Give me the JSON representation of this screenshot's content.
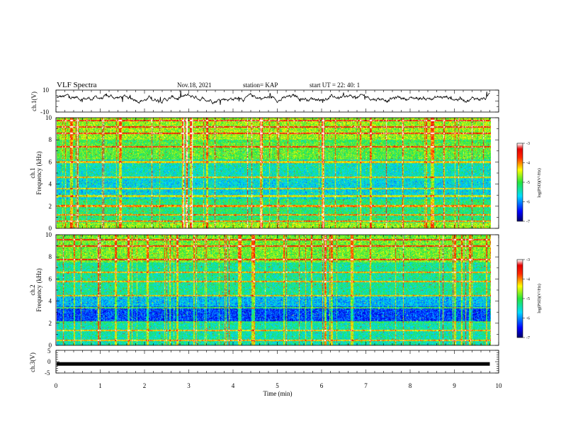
{
  "header": {
    "title": "VLF Spectra",
    "date": "Nov.18, 2021",
    "station": "station= KAP",
    "start": "start  UT =   22: 40: 1"
  },
  "chart_data": [
    {
      "type": "line",
      "name": "ch1-waveform",
      "ylabel": "ch.1(V)",
      "xlim": [
        0,
        10
      ],
      "ylim": [
        -10,
        10
      ],
      "yticks": [
        "10",
        "-10"
      ],
      "x_data_end": 9.8,
      "baseline_v": 3,
      "amplitude_v": 4
    },
    {
      "type": "heatmap",
      "name": "ch1-spectrogram",
      "ylabel_line1": "ch.1",
      "ylabel_line2": "Frequency  (kHz)",
      "xlim": [
        0,
        10
      ],
      "ylim": [
        0,
        10
      ],
      "yticks": [
        "0",
        "2",
        "4",
        "6",
        "8",
        "10"
      ],
      "x_data_end": 9.8,
      "color_scale": {
        "label": "log(PSD)(V²/Hz)",
        "min": -7,
        "max": -3,
        "ticks": [
          "-3",
          "-4",
          "-5",
          "-6",
          "-7"
        ]
      }
    },
    {
      "type": "heatmap",
      "name": "ch2-spectrogram",
      "ylabel_line1": "ch.2",
      "ylabel_line2": "Frequency  (kHz)",
      "xlim": [
        0,
        10
      ],
      "ylim": [
        0,
        10
      ],
      "yticks": [
        "0",
        "2",
        "4",
        "6",
        "8",
        "10"
      ],
      "x_data_end": 9.8,
      "color_scale": {
        "label": "log(PSD)(V²/Hz)",
        "min": -7,
        "max": -3,
        "ticks": [
          "-3",
          "-4",
          "-5",
          "-6",
          "-7"
        ]
      }
    },
    {
      "type": "line",
      "name": "ch3-waveform",
      "ylabel": "ch.3(V)",
      "xlim": [
        0,
        10
      ],
      "ylim": [
        -5,
        5
      ],
      "yticks": [
        "5",
        "0",
        "-5"
      ],
      "x_data_end": 9.8,
      "baseline_v": -1
    }
  ],
  "xaxis": {
    "label": "Time  (min)",
    "ticks": [
      "0",
      "1",
      "2",
      "3",
      "4",
      "5",
      "6",
      "7",
      "8",
      "9",
      "10"
    ]
  }
}
